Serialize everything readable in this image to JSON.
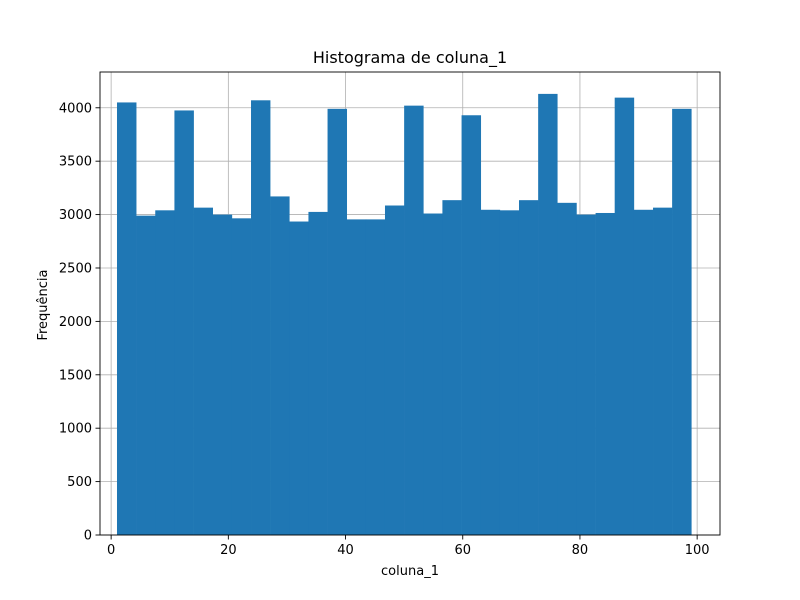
{
  "chart_data": {
    "type": "bar",
    "title": "Histograma de coluna_1",
    "xlabel": "coluna_1",
    "ylabel": "Frequência",
    "xlim": [
      -1.9,
      103.9
    ],
    "ylim": [
      0,
      4335
    ],
    "xticks": [
      0,
      20,
      40,
      60,
      80,
      100
    ],
    "yticks": [
      0,
      500,
      1000,
      1500,
      2000,
      2500,
      3000,
      3500,
      4000
    ],
    "grid": true,
    "bar_color": "#1f77b4",
    "bins": [
      {
        "x0": 1.0,
        "x1": 4.27,
        "value": 4050
      },
      {
        "x0": 4.27,
        "x1": 7.53,
        "value": 2990
      },
      {
        "x0": 7.53,
        "x1": 10.8,
        "value": 3040
      },
      {
        "x0": 10.8,
        "x1": 14.07,
        "value": 3975
      },
      {
        "x0": 14.07,
        "x1": 17.33,
        "value": 3065
      },
      {
        "x0": 17.33,
        "x1": 20.6,
        "value": 3000
      },
      {
        "x0": 20.6,
        "x1": 23.87,
        "value": 2965
      },
      {
        "x0": 23.87,
        "x1": 27.13,
        "value": 4070
      },
      {
        "x0": 27.13,
        "x1": 30.4,
        "value": 3170
      },
      {
        "x0": 30.4,
        "x1": 33.67,
        "value": 2935
      },
      {
        "x0": 33.67,
        "x1": 36.93,
        "value": 3025
      },
      {
        "x0": 36.93,
        "x1": 40.2,
        "value": 3990
      },
      {
        "x0": 40.2,
        "x1": 43.47,
        "value": 2955
      },
      {
        "x0": 43.47,
        "x1": 46.73,
        "value": 2955
      },
      {
        "x0": 46.73,
        "x1": 50.0,
        "value": 3085
      },
      {
        "x0": 50.0,
        "x1": 53.27,
        "value": 4020
      },
      {
        "x0": 53.27,
        "x1": 56.53,
        "value": 3010
      },
      {
        "x0": 56.53,
        "x1": 59.8,
        "value": 3135
      },
      {
        "x0": 59.8,
        "x1": 63.07,
        "value": 3930
      },
      {
        "x0": 63.07,
        "x1": 66.33,
        "value": 3045
      },
      {
        "x0": 66.33,
        "x1": 69.6,
        "value": 3040
      },
      {
        "x0": 69.6,
        "x1": 72.87,
        "value": 3135
      },
      {
        "x0": 72.87,
        "x1": 76.13,
        "value": 4130
      },
      {
        "x0": 76.13,
        "x1": 79.4,
        "value": 3110
      },
      {
        "x0": 79.4,
        "x1": 82.67,
        "value": 3000
      },
      {
        "x0": 82.67,
        "x1": 85.93,
        "value": 3015
      },
      {
        "x0": 85.93,
        "x1": 89.2,
        "value": 4095
      },
      {
        "x0": 89.2,
        "x1": 92.47,
        "value": 3045
      },
      {
        "x0": 92.47,
        "x1": 95.73,
        "value": 3065
      },
      {
        "x0": 95.73,
        "x1": 99.0,
        "value": 3990
      }
    ]
  }
}
